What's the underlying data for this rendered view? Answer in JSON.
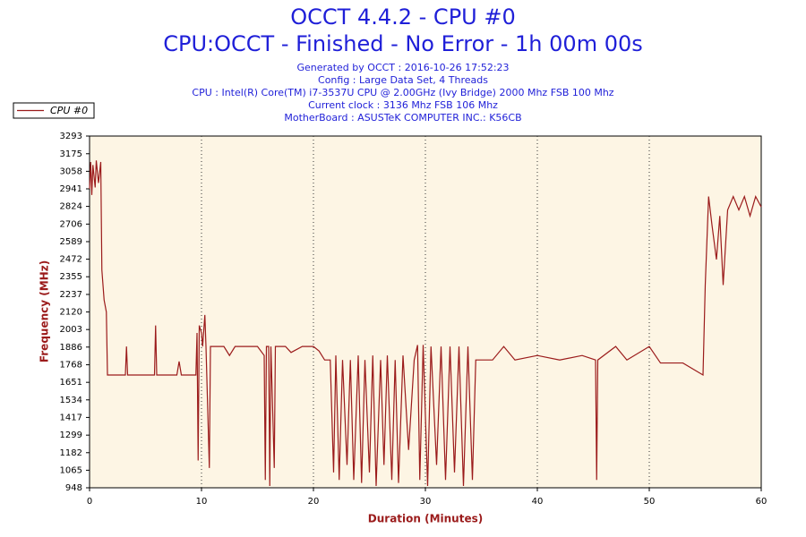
{
  "chart_data": {
    "type": "line",
    "title": "OCCT 4.4.2 - CPU #0",
    "subtitle": "CPU:OCCT - Finished - No Error - 1h 00m 00s",
    "info": [
      "Generated by OCCT : 2016-10-26 17:52:23",
      "Config : Large Data Set, 4 Threads",
      "CPU : Intel(R) Core(TM) i7-3537U CPU @ 2.00GHz (Ivy Bridge) 2000 Mhz FSB 100 Mhz",
      "Current clock : 3136 Mhz FSB 106 Mhz",
      "MotherBoard : ASUSTeK COMPUTER INC.: K56CB"
    ],
    "x_label": "Duration (Minutes)",
    "y_label": "Frequency (MHz)",
    "legend": "top-left",
    "grid": true,
    "xlim": [
      0,
      60
    ],
    "xticks": [
      0,
      10,
      20,
      30,
      40,
      50,
      60
    ],
    "ylim": [
      948,
      3293
    ],
    "yticks": [
      948,
      1065,
      1182,
      1299,
      1417,
      1534,
      1651,
      1768,
      1886,
      2003,
      2120,
      2237,
      2355,
      2472,
      2589,
      2706,
      2824,
      2941,
      3058,
      3175,
      3293
    ],
    "x": [
      0,
      0.1,
      0.2,
      0.3,
      0.5,
      0.6,
      0.8,
      1.0,
      1.1,
      1.3,
      1.5,
      1.6,
      3.2,
      3.3,
      3.4,
      5.8,
      5.9,
      6.0,
      7.8,
      8.0,
      8.2,
      9.5,
      9.6,
      9.7,
      9.8,
      10.0,
      10.1,
      10.3,
      10.4,
      10.7,
      10.8,
      12,
      12.5,
      13,
      14,
      15,
      15.6,
      15.7,
      15.8,
      16.0,
      16.1,
      16.2,
      16.5,
      16.6,
      17.5,
      18,
      19,
      20,
      20.5,
      21,
      21.5,
      21.8,
      22,
      22.3,
      22.6,
      23,
      23.3,
      23.6,
      24,
      24.3,
      24.6,
      25,
      25.3,
      25.6,
      26,
      26.3,
      26.6,
      27,
      27.3,
      27.6,
      28,
      28.5,
      29,
      29.3,
      29.5,
      29.8,
      30.2,
      30.5,
      31,
      31.4,
      31.8,
      32.2,
      32.6,
      33,
      33.4,
      33.8,
      34.2,
      34.5,
      36,
      37,
      38,
      40,
      42,
      44,
      45.2,
      45.3,
      45.4,
      47,
      48,
      50,
      51,
      53,
      54.8,
      55,
      55.3,
      55.6,
      56,
      56.3,
      56.6,
      57,
      57.5,
      58,
      58.5,
      59,
      59.5,
      60
    ],
    "series": [
      {
        "name": "CPU #0",
        "color": "#9b1b1b",
        "values": [
          2941,
          3120,
          2900,
          3100,
          2950,
          3130,
          2980,
          3120,
          2400,
          2200,
          2120,
          1700,
          1700,
          1890,
          1700,
          1700,
          2030,
          1700,
          1700,
          1790,
          1700,
          1700,
          1980,
          1130,
          2030,
          1980,
          1890,
          2100,
          1890,
          1080,
          1890,
          1890,
          1830,
          1890,
          1890,
          1890,
          1830,
          1000,
          1890,
          1890,
          960,
          1890,
          1080,
          1890,
          1890,
          1850,
          1890,
          1890,
          1860,
          1800,
          1800,
          1050,
          1830,
          1000,
          1800,
          1100,
          1800,
          1000,
          1830,
          980,
          1800,
          1050,
          1830,
          960,
          1800,
          1100,
          1830,
          1000,
          1800,
          980,
          1830,
          1200,
          1800,
          1900,
          1000,
          1900,
          960,
          1890,
          1100,
          1890,
          1000,
          1890,
          1050,
          1890,
          960,
          1890,
          1000,
          1800,
          1800,
          1890,
          1800,
          1830,
          1800,
          1830,
          1800,
          1000,
          1800,
          1890,
          1800,
          1890,
          1780,
          1780,
          1700,
          2300,
          2890,
          2700,
          2470,
          2760,
          2300,
          2800,
          2890,
          2800,
          2890,
          2760,
          2890,
          2820
        ]
      }
    ]
  }
}
